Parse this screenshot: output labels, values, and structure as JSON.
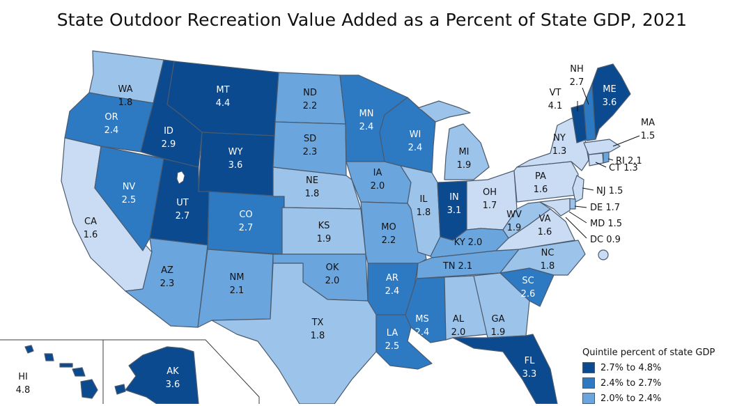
{
  "title": "State Outdoor Recreation Value Added as a Percent of State GDP, 2021",
  "colors": {
    "q1": "#0b4a8f",
    "q2": "#2d79c2",
    "q3": "#6aa5dd",
    "q4": "#9cc3ea",
    "q5": "#c9dcf3",
    "border": "#4a5a6e",
    "text_dark": "#111111",
    "text_light": "#ffffff"
  },
  "legend": {
    "title": "Quintile percent of state GDP",
    "items": [
      {
        "label": "2.7% to 4.8%",
        "color": "#0b4a8f"
      },
      {
        "label": "2.4% to 2.7%",
        "color": "#2d79c2"
      },
      {
        "label": "2.0% to 2.4%",
        "color": "#6aa5dd"
      }
    ]
  },
  "states": {
    "WA": {
      "abbr": "WA",
      "value": "1.8"
    },
    "OR": {
      "abbr": "OR",
      "value": "2.4"
    },
    "CA": {
      "abbr": "CA",
      "value": "1.6"
    },
    "NV": {
      "abbr": "NV",
      "value": "2.5"
    },
    "ID": {
      "abbr": "ID",
      "value": "2.9"
    },
    "MT": {
      "abbr": "MT",
      "value": "4.4"
    },
    "WY": {
      "abbr": "WY",
      "value": "3.6"
    },
    "UT": {
      "abbr": "UT",
      "value": "2.7"
    },
    "AZ": {
      "abbr": "AZ",
      "value": "2.3"
    },
    "CO": {
      "abbr": "CO",
      "value": "2.7"
    },
    "NM": {
      "abbr": "NM",
      "value": "2.1"
    },
    "ND": {
      "abbr": "ND",
      "value": "2.2"
    },
    "SD": {
      "abbr": "SD",
      "value": "2.3"
    },
    "NE": {
      "abbr": "NE",
      "value": "1.8"
    },
    "KS": {
      "abbr": "KS",
      "value": "1.9"
    },
    "OK": {
      "abbr": "OK",
      "value": "2.0"
    },
    "TX": {
      "abbr": "TX",
      "value": "1.8"
    },
    "MN": {
      "abbr": "MN",
      "value": "2.4"
    },
    "IA": {
      "abbr": "IA",
      "value": "2.0"
    },
    "MO": {
      "abbr": "MO",
      "value": "2.2"
    },
    "AR": {
      "abbr": "AR",
      "value": "2.4"
    },
    "LA": {
      "abbr": "LA",
      "value": "2.5"
    },
    "WI": {
      "abbr": "WI",
      "value": "2.4"
    },
    "IL": {
      "abbr": "IL",
      "value": "1.8"
    },
    "MI": {
      "abbr": "MI",
      "value": "1.9"
    },
    "IN": {
      "abbr": "IN",
      "value": "3.1"
    },
    "OH": {
      "abbr": "OH",
      "value": "1.7"
    },
    "KY": {
      "abbr": "KY",
      "value": "2.0"
    },
    "TN": {
      "abbr": "TN",
      "value": "2.1"
    },
    "MS": {
      "abbr": "MS",
      "value": "2.4"
    },
    "AL": {
      "abbr": "AL",
      "value": "2.0"
    },
    "GA": {
      "abbr": "GA",
      "value": "1.9"
    },
    "FL": {
      "abbr": "FL",
      "value": "3.3"
    },
    "SC": {
      "abbr": "SC",
      "value": "2.6"
    },
    "NC": {
      "abbr": "NC",
      "value": "1.8"
    },
    "VA": {
      "abbr": "VA",
      "value": "1.6"
    },
    "WV": {
      "abbr": "WV",
      "value": "1.9"
    },
    "PA": {
      "abbr": "PA",
      "value": "1.6"
    },
    "NY": {
      "abbr": "NY",
      "value": "1.3"
    },
    "ME": {
      "abbr": "ME",
      "value": "3.6"
    },
    "AK": {
      "abbr": "AK",
      "value": "3.6"
    },
    "HI": {
      "abbr": "HI",
      "value": "4.8"
    },
    "VT": {
      "label": "VT",
      "value": "4.1"
    },
    "NH": {
      "label": "NH",
      "value": "2.7"
    },
    "MA": {
      "label": "MA",
      "value": "1.5"
    },
    "RI": {
      "label": "RI 2.1"
    },
    "CT": {
      "label": "CT 1.3"
    },
    "NJ": {
      "label": "NJ 1.5"
    },
    "DE": {
      "label": "DE 1.7"
    },
    "MD": {
      "label": "MD 1.5"
    },
    "DC": {
      "label": "DC 0.9"
    }
  }
}
